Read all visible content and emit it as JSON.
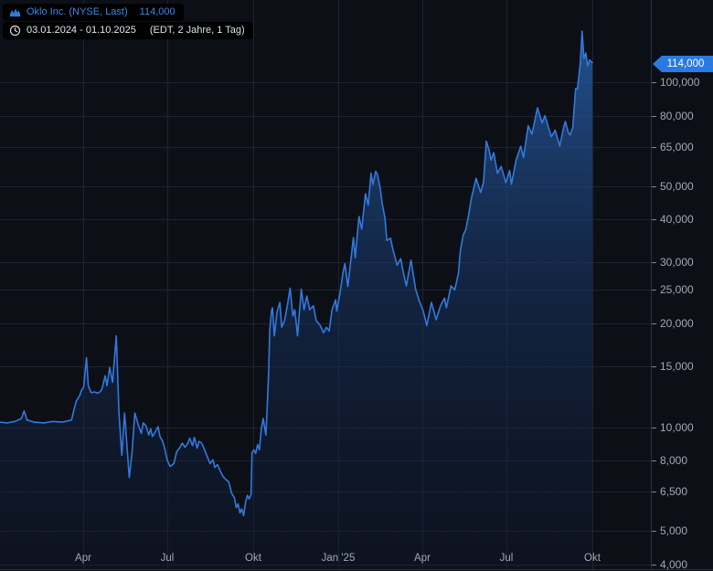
{
  "header": {
    "symbol": {
      "label": "Oklo Inc. (NYSE, Last)",
      "value": "114,000"
    },
    "range": {
      "text": "03.01.2024 - 01.10.2025",
      "detail": "(EDT, 2 Jahre, 1 Tag)"
    }
  },
  "last_price": {
    "label": "114,000",
    "value": 114.0
  },
  "colors": {
    "background": "#0d0f16",
    "gridline": "#1e2430",
    "frame": "#2b3140",
    "axis_label": "#a2a8b4",
    "tick_dash": "#818692",
    "line_blue": "#3279dd",
    "legend_blue": "#3d87e8",
    "badge_blue": "#2b7ae2",
    "fill_top": "#2a66b5",
    "fill_bottom": "#0d1a33"
  },
  "chart_data": {
    "type": "area",
    "title": "Oklo Inc. (NYSE, Last)",
    "y_scale": "log",
    "legend_position": "top-left",
    "grid": true,
    "x_range": {
      "start": "2024-01-03",
      "end": "2025-10-01"
    },
    "y_ticks": [
      {
        "label": "100,000",
        "value": 100
      },
      {
        "label": "80,000",
        "value": 80
      },
      {
        "label": "65,000",
        "value": 65
      },
      {
        "label": "50,000",
        "value": 50
      },
      {
        "label": "40,000",
        "value": 40
      },
      {
        "label": "30,000",
        "value": 30
      },
      {
        "label": "25,000",
        "value": 25
      },
      {
        "label": "20,000",
        "value": 20
      },
      {
        "label": "15,000",
        "value": 15
      },
      {
        "label": "10,000",
        "value": 10
      },
      {
        "label": "8,000",
        "value": 8
      },
      {
        "label": "6,500",
        "value": 6.5
      },
      {
        "label": "5,000",
        "value": 5
      },
      {
        "label": "4,000",
        "value": 4
      }
    ],
    "x_ticks": [
      {
        "label": "Apr",
        "date": "2024-04-01"
      },
      {
        "label": "Jul",
        "date": "2024-07-01"
      },
      {
        "label": "Okt",
        "date": "2024-10-01"
      },
      {
        "label": "Jan '25",
        "date": "2025-01-01"
      },
      {
        "label": "Apr",
        "date": "2025-04-01"
      },
      {
        "label": "Jul",
        "date": "2025-07-01"
      },
      {
        "label": "Okt",
        "date": "2025-10-01"
      }
    ],
    "series": [
      {
        "name": "Oklo Inc. (NYSE, Last)",
        "points": [
          [
            "2024-01-03",
            10.35
          ],
          [
            "2024-01-11",
            10.3
          ],
          [
            "2024-01-19",
            10.4
          ],
          [
            "2024-01-26",
            10.6
          ],
          [
            "2024-01-29",
            11.15
          ],
          [
            "2024-02-01",
            10.5
          ],
          [
            "2024-02-09",
            10.35
          ],
          [
            "2024-02-19",
            10.3
          ],
          [
            "2024-02-29",
            10.4
          ],
          [
            "2024-03-10",
            10.35
          ],
          [
            "2024-03-20",
            10.5
          ],
          [
            "2024-03-22",
            11.1
          ],
          [
            "2024-03-25",
            11.9
          ],
          [
            "2024-03-29",
            12.4
          ],
          [
            "2024-03-30",
            12.7
          ],
          [
            "2024-04-02",
            13.1
          ],
          [
            "2024-04-05",
            15.9
          ],
          [
            "2024-04-07",
            13.2
          ],
          [
            "2024-04-10",
            12.6
          ],
          [
            "2024-04-14",
            12.65
          ],
          [
            "2024-04-17",
            12.55
          ],
          [
            "2024-04-20",
            12.7
          ],
          [
            "2024-04-22",
            13.0
          ],
          [
            "2024-04-25",
            14.1
          ],
          [
            "2024-04-27",
            13.2
          ],
          [
            "2024-04-30",
            14.9
          ],
          [
            "2024-05-03",
            13.5
          ],
          [
            "2024-05-07",
            18.4
          ],
          [
            "2024-05-10",
            10.9
          ],
          [
            "2024-05-13",
            8.3
          ],
          [
            "2024-05-16",
            11.0
          ],
          [
            "2024-05-21",
            7.15
          ],
          [
            "2024-05-24",
            8.5
          ],
          [
            "2024-05-27",
            11.0
          ],
          [
            "2024-05-31",
            10.1
          ],
          [
            "2024-06-03",
            9.6
          ],
          [
            "2024-06-05",
            10.3
          ],
          [
            "2024-06-08",
            10.1
          ],
          [
            "2024-06-11",
            9.5
          ],
          [
            "2024-06-13",
            9.9
          ],
          [
            "2024-06-15",
            9.4
          ],
          [
            "2024-06-18",
            9.7
          ],
          [
            "2024-06-21",
            10.05
          ],
          [
            "2024-06-23",
            9.4
          ],
          [
            "2024-06-26",
            9.1
          ],
          [
            "2024-06-28",
            8.7
          ],
          [
            "2024-07-01",
            8.0
          ],
          [
            "2024-07-04",
            7.7
          ],
          [
            "2024-07-08",
            7.85
          ],
          [
            "2024-07-11",
            8.5
          ],
          [
            "2024-07-14",
            8.7
          ],
          [
            "2024-07-17",
            9.0
          ],
          [
            "2024-07-20",
            8.75
          ],
          [
            "2024-07-23",
            9.0
          ],
          [
            "2024-07-25",
            9.3
          ],
          [
            "2024-07-28",
            8.85
          ],
          [
            "2024-07-30",
            9.35
          ],
          [
            "2024-08-02",
            8.7
          ],
          [
            "2024-08-04",
            9.1
          ],
          [
            "2024-08-07",
            9.0
          ],
          [
            "2024-08-10",
            8.6
          ],
          [
            "2024-08-13",
            8.2
          ],
          [
            "2024-08-16",
            7.85
          ],
          [
            "2024-08-19",
            8.05
          ],
          [
            "2024-08-21",
            7.65
          ],
          [
            "2024-08-24",
            7.8
          ],
          [
            "2024-08-27",
            7.45
          ],
          [
            "2024-08-30",
            7.2
          ],
          [
            "2024-09-02",
            7.05
          ],
          [
            "2024-09-05",
            6.95
          ],
          [
            "2024-09-08",
            6.45
          ],
          [
            "2024-09-11",
            6.25
          ],
          [
            "2024-09-13",
            5.85
          ],
          [
            "2024-09-15",
            6.0
          ],
          [
            "2024-09-17",
            5.65
          ],
          [
            "2024-09-19",
            5.8
          ],
          [
            "2024-09-21",
            5.55
          ],
          [
            "2024-09-23",
            6.05
          ],
          [
            "2024-09-25",
            6.35
          ],
          [
            "2024-09-27",
            6.2
          ],
          [
            "2024-09-29",
            6.4
          ],
          [
            "2024-09-30",
            8.45
          ],
          [
            "2024-10-02",
            8.6
          ],
          [
            "2024-10-04",
            8.4
          ],
          [
            "2024-10-06",
            8.9
          ],
          [
            "2024-10-08",
            8.6
          ],
          [
            "2024-10-10",
            9.9
          ],
          [
            "2024-10-12",
            10.6
          ],
          [
            "2024-10-15",
            9.5
          ],
          [
            "2024-10-17",
            12.6
          ],
          [
            "2024-10-18",
            14.7
          ],
          [
            "2024-10-19",
            19.0
          ],
          [
            "2024-10-21",
            21.7
          ],
          [
            "2024-10-22",
            22.2
          ],
          [
            "2024-10-24",
            18.4
          ],
          [
            "2024-10-27",
            21.6
          ],
          [
            "2024-10-30",
            23.0
          ],
          [
            "2024-11-01",
            19.5
          ],
          [
            "2024-11-04",
            20.4
          ],
          [
            "2024-11-07",
            22.5
          ],
          [
            "2024-11-10",
            25.3
          ],
          [
            "2024-11-13",
            21.0
          ],
          [
            "2024-11-15",
            21.9
          ],
          [
            "2024-11-18",
            18.4
          ],
          [
            "2024-11-22",
            25.1
          ],
          [
            "2024-11-25",
            21.9
          ],
          [
            "2024-11-28",
            24.0
          ],
          [
            "2024-12-01",
            21.9
          ],
          [
            "2024-12-05",
            22.5
          ],
          [
            "2024-12-08",
            20.4
          ],
          [
            "2024-12-12",
            19.8
          ],
          [
            "2024-12-16",
            18.8
          ],
          [
            "2024-12-19",
            19.5
          ],
          [
            "2024-12-22",
            19.0
          ],
          [
            "2024-12-25",
            21.9
          ],
          [
            "2024-12-29",
            23.4
          ],
          [
            "2024-12-30",
            21.7
          ],
          [
            "2025-01-03",
            24.8
          ],
          [
            "2025-01-06",
            28.3
          ],
          [
            "2025-01-08",
            29.8
          ],
          [
            "2025-01-11",
            25.6
          ],
          [
            "2025-01-13",
            28.4
          ],
          [
            "2025-01-17",
            35.5
          ],
          [
            "2025-01-19",
            31.0
          ],
          [
            "2025-01-23",
            40.8
          ],
          [
            "2025-01-26",
            37.5
          ],
          [
            "2025-01-30",
            47.5
          ],
          [
            "2025-02-02",
            44.0
          ],
          [
            "2025-02-05",
            54.5
          ],
          [
            "2025-02-07",
            50.5
          ],
          [
            "2025-02-10",
            55.2
          ],
          [
            "2025-02-12",
            54.0
          ],
          [
            "2025-02-15",
            49.0
          ],
          [
            "2025-02-17",
            44.5
          ],
          [
            "2025-02-20",
            40.5
          ],
          [
            "2025-02-22",
            34.8
          ],
          [
            "2025-02-26",
            35.3
          ],
          [
            "2025-02-28",
            33.2
          ],
          [
            "2025-03-05",
            29.5
          ],
          [
            "2025-03-09",
            30.8
          ],
          [
            "2025-03-12",
            27.9
          ],
          [
            "2025-03-15",
            25.7
          ],
          [
            "2025-03-20",
            30.5
          ],
          [
            "2025-03-25",
            25.1
          ],
          [
            "2025-03-29",
            23.2
          ],
          [
            "2025-04-02",
            21.8
          ],
          [
            "2025-04-06",
            19.7
          ],
          [
            "2025-04-11",
            23.0
          ],
          [
            "2025-04-16",
            20.5
          ],
          [
            "2025-04-21",
            22.6
          ],
          [
            "2025-04-25",
            23.7
          ],
          [
            "2025-04-27",
            22.2
          ],
          [
            "2025-05-02",
            25.7
          ],
          [
            "2025-05-06",
            25.0
          ],
          [
            "2025-05-10",
            27.9
          ],
          [
            "2025-05-12",
            32.3
          ],
          [
            "2025-05-15",
            36.0
          ],
          [
            "2025-05-18",
            37.5
          ],
          [
            "2025-05-21",
            41.3
          ],
          [
            "2025-05-24",
            46.3
          ],
          [
            "2025-05-27",
            49.9
          ],
          [
            "2025-05-29",
            52.7
          ],
          [
            "2025-05-31",
            50.6
          ],
          [
            "2025-06-03",
            47.9
          ],
          [
            "2025-06-06",
            51.5
          ],
          [
            "2025-06-09",
            67.5
          ],
          [
            "2025-06-12",
            63.5
          ],
          [
            "2025-06-14",
            59.5
          ],
          [
            "2025-06-17",
            62.5
          ],
          [
            "2025-06-21",
            54.5
          ],
          [
            "2025-06-25",
            57.0
          ],
          [
            "2025-06-30",
            51.2
          ],
          [
            "2025-07-04",
            55.5
          ],
          [
            "2025-07-06",
            50.6
          ],
          [
            "2025-07-11",
            59.5
          ],
          [
            "2025-07-16",
            65.3
          ],
          [
            "2025-07-19",
            60.5
          ],
          [
            "2025-07-24",
            74.8
          ],
          [
            "2025-07-28",
            70.7
          ],
          [
            "2025-08-03",
            84.3
          ],
          [
            "2025-08-08",
            76.2
          ],
          [
            "2025-08-11",
            80.0
          ],
          [
            "2025-08-18",
            69.5
          ],
          [
            "2025-08-22",
            72.6
          ],
          [
            "2025-08-27",
            65.3
          ],
          [
            "2025-08-31",
            73.9
          ],
          [
            "2025-09-02",
            77.0
          ],
          [
            "2025-09-05",
            71.7
          ],
          [
            "2025-09-07",
            70.3
          ],
          [
            "2025-09-10",
            73.9
          ],
          [
            "2025-09-13",
            95.8
          ],
          [
            "2025-09-15",
            95.5
          ],
          [
            "2025-09-18",
            113.9
          ],
          [
            "2025-09-20",
            140.5
          ],
          [
            "2025-09-21",
            128.8
          ],
          [
            "2025-09-22",
            117.0
          ],
          [
            "2025-09-24",
            121.5
          ],
          [
            "2025-09-26",
            111.5
          ],
          [
            "2025-09-28",
            116.0
          ],
          [
            "2025-10-01",
            114.0
          ]
        ]
      }
    ]
  }
}
